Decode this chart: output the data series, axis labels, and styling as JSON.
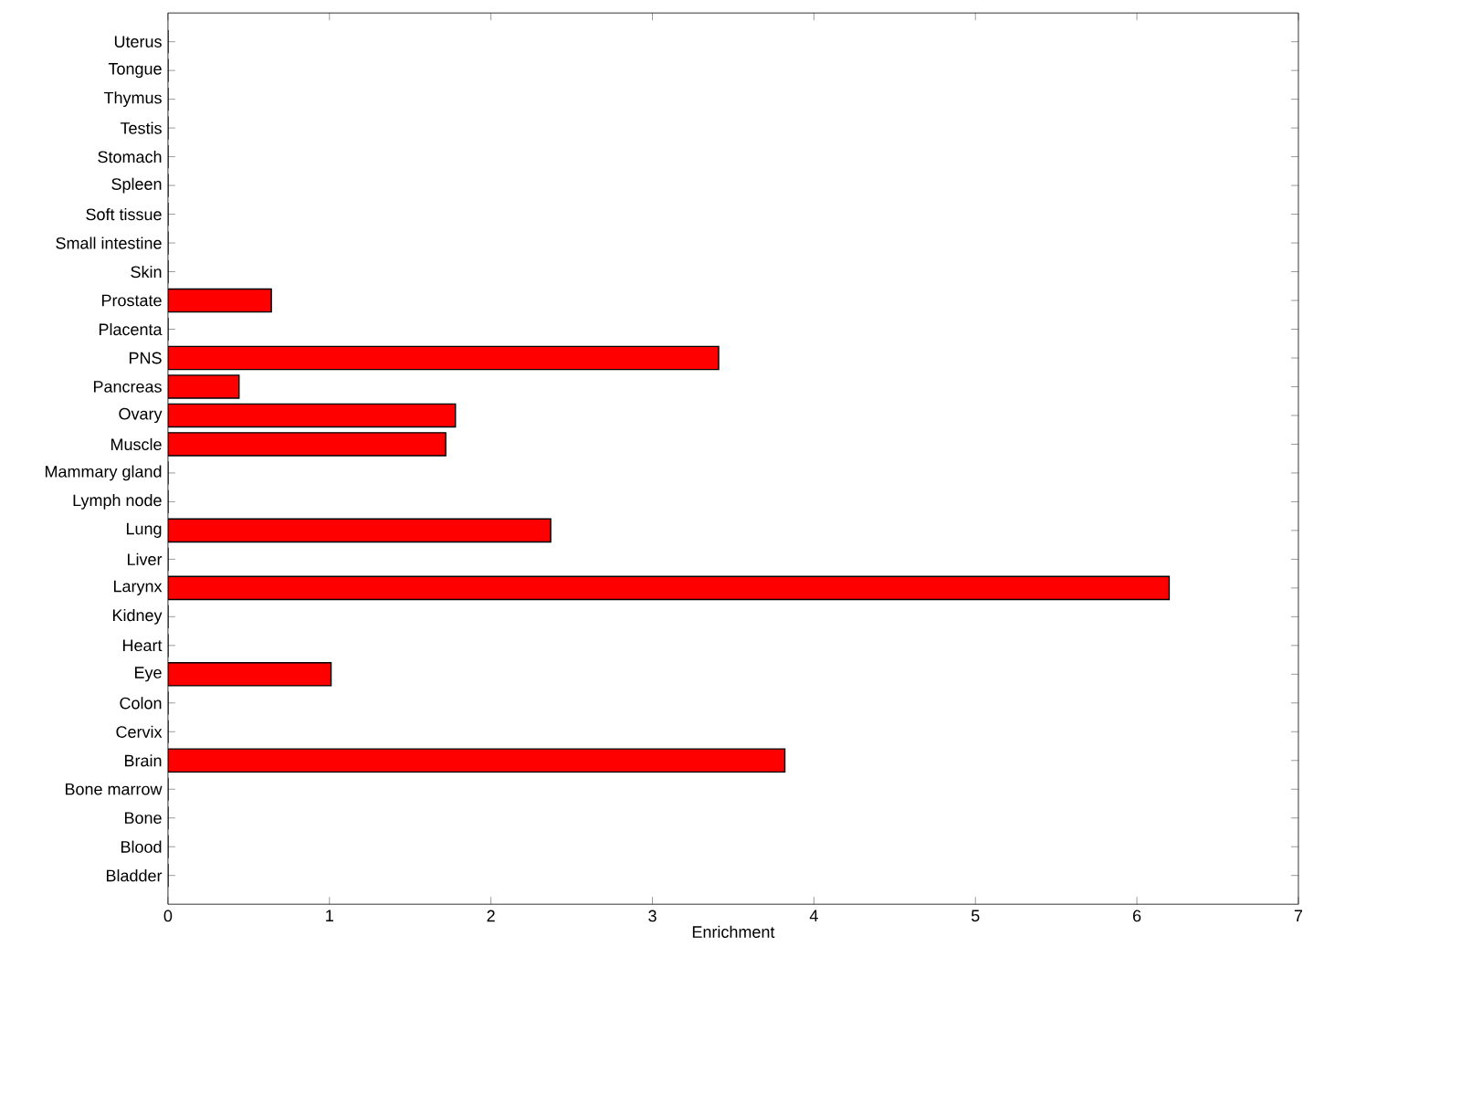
{
  "chart_data": {
    "type": "bar",
    "orientation": "horizontal",
    "xlabel": "Enrichment",
    "categories": [
      "Uterus",
      "Tongue",
      "Thymus",
      "Testis",
      "Stomach",
      "Spleen",
      "Soft tissue",
      "Small intestine",
      "Skin",
      "Prostate",
      "Placenta",
      "PNS",
      "Pancreas",
      "Ovary",
      "Muscle",
      "Mammary gland",
      "Lymph node",
      "Lung",
      "Liver",
      "Larynx",
      "Kidney",
      "Heart",
      "Eye",
      "Colon",
      "Cervix",
      "Brain",
      "Bone marrow",
      "Bone",
      "Blood",
      "Bladder"
    ],
    "values": [
      0,
      0,
      0,
      0,
      0,
      0,
      0,
      0,
      0,
      0.64,
      0,
      3.41,
      0.44,
      1.78,
      1.72,
      0,
      0,
      2.37,
      0,
      6.2,
      0,
      0,
      1.01,
      0,
      0,
      3.82,
      0,
      0,
      0,
      0
    ],
    "color": "#ff0000",
    "xlim": [
      0,
      7
    ],
    "xticks": [
      0,
      1,
      2,
      3,
      4,
      5,
      6,
      7
    ]
  }
}
